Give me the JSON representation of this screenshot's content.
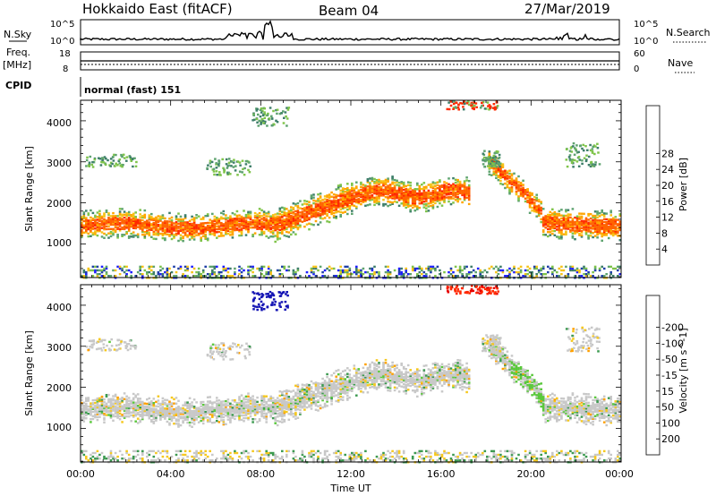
{
  "header": {
    "station": "Hokkaido East (fitACF)",
    "beam": "Beam 04",
    "date": "27/Mar/2019"
  },
  "noise_panel": {
    "left_label": "N.Sky",
    "right_label": "N.Search",
    "y_ticks_left": [
      "10^5",
      "10^0"
    ],
    "y_ticks_right": [
      "10^5",
      "10^0"
    ]
  },
  "freq_panel": {
    "left_label": "Freq.",
    "left_unit": "[MHz]",
    "right_label": "Nave",
    "y_ticks_left": [
      "18",
      "8"
    ],
    "y_ticks_right": [
      "60",
      "0"
    ]
  },
  "cpid": {
    "label": "CPID",
    "text": "normal (fast) 151"
  },
  "chart_data": [
    {
      "type": "heatmap",
      "title": "",
      "ylabel": "Slant Range [km]",
      "xlabel": "",
      "ylim": [
        180,
        4500
      ],
      "y_ticks": [
        "1000",
        "2000",
        "3000",
        "4000"
      ],
      "colorbar_label": "Power [dB]",
      "colorbar_ticks": [
        "4",
        "8",
        "12",
        "16",
        "20",
        "24",
        "28"
      ],
      "colorbar_colors": [
        "#1e1eff",
        "#1f3fa8",
        "#3e7e6a",
        "#5ea36f",
        "#7fc44a",
        "#f5c318",
        "#ffa500",
        "#ff6400",
        "#ff2a00",
        "#e60000"
      ],
      "features": [
        {
          "start_h": 0,
          "end_h": 8.5,
          "range_km": [
            1200,
            1750
          ]
        },
        {
          "start_h": 8.5,
          "end_h": 12,
          "range_km": [
            1600,
            2400
          ]
        },
        {
          "start_h": 12,
          "end_h": 17.2,
          "range_km": [
            2100,
            2700
          ]
        },
        {
          "start_h": 18,
          "end_h": 20.5,
          "range_km": [
            1800,
            3200
          ]
        },
        {
          "start_h": 20.5,
          "end_h": 24,
          "range_km": [
            1200,
            1800
          ]
        }
      ]
    },
    {
      "type": "heatmap",
      "title": "",
      "ylabel": "Slant Range [km]",
      "xlabel": "Time UT",
      "ylim": [
        180,
        4500
      ],
      "x_ticks": [
        "00:00",
        "04:00",
        "08:00",
        "12:00",
        "16:00",
        "20:00",
        "00:00"
      ],
      "y_ticks": [
        "1000",
        "2000",
        "3000",
        "4000"
      ],
      "colorbar_label": "Velocity [m s^-1]",
      "colorbar_ticks": [
        "200",
        "100",
        "50",
        "15",
        "-15",
        "-50",
        "-100",
        "-200"
      ],
      "colorbar_colors": [
        "#1414b4",
        "#2d5a8c",
        "#3c9a50",
        "#5ac83c",
        "#c8c8c8",
        "#f5c81e",
        "#ffa000",
        "#ff6400",
        "#ff2800",
        "#e60000"
      ]
    }
  ]
}
